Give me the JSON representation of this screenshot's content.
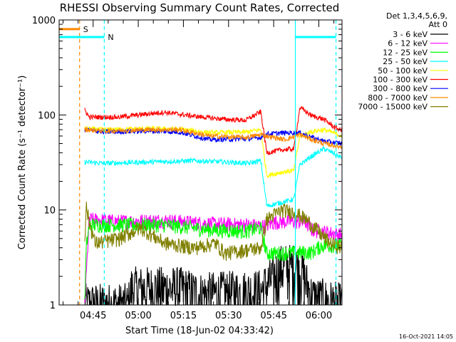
{
  "chart_data": {
    "type": "line",
    "title": "RHESSI Observing Summary Count Rates, Corrected",
    "xlabel": "Start Time (18-Jun-02 04:33:42)",
    "ylabel": "Corrected Count Rate (s⁻¹ detector⁻¹)",
    "yscale": "log",
    "ylim": [
      1,
      1000
    ],
    "xlim_minutes": [
      0,
      94
    ],
    "x_units": "minutes after 04:33:42",
    "x_ticks": [
      {
        "label": "04:45",
        "t": 11.3
      },
      {
        "label": "05:00",
        "t": 26.3
      },
      {
        "label": "05:15",
        "t": 41.3
      },
      {
        "label": "05:30",
        "t": 56.3
      },
      {
        "label": "05:45",
        "t": 71.3
      },
      {
        "label": "06:00",
        "t": 86.3
      }
    ],
    "y_ticks": [
      {
        "label": "1",
        "v": 1
      },
      {
        "label": "10",
        "v": 10
      },
      {
        "label": "100",
        "v": 100
      },
      {
        "label": "1000",
        "v": 1000
      }
    ],
    "legend_header": [
      "Det 1,3,4,5,6,9,",
      "Att 0"
    ],
    "series": [
      {
        "name": "3 - 6 keV",
        "color": "#000000",
        "points": [
          [
            8.5,
            1
          ],
          [
            23,
            1
          ],
          [
            24,
            1.5
          ],
          [
            40,
            1.5
          ],
          [
            47,
            1.3
          ],
          [
            67,
            1.4
          ],
          [
            70,
            1.8
          ],
          [
            74,
            2.6
          ],
          [
            80,
            2.6
          ],
          [
            84,
            1.2
          ],
          [
            94,
            1
          ]
        ]
      },
      {
        "name": "6 - 12 keV",
        "color": "#ff00ff",
        "points": [
          [
            8.5,
            1
          ],
          [
            9,
            2.0
          ],
          [
            10,
            8
          ],
          [
            20,
            7.6
          ],
          [
            35,
            7.8
          ],
          [
            50,
            7.2
          ],
          [
            62,
            7.0
          ],
          [
            68,
            6.8
          ],
          [
            72,
            7.5
          ],
          [
            78,
            7.6
          ],
          [
            82,
            7.4
          ],
          [
            84,
            6.2
          ],
          [
            94,
            5.5
          ]
        ]
      },
      {
        "name": "12 - 25 keV",
        "color": "#00ff00",
        "points": [
          [
            8.5,
            1
          ],
          [
            9,
            4
          ],
          [
            10,
            7
          ],
          [
            20,
            7
          ],
          [
            35,
            7
          ],
          [
            50,
            6.2
          ],
          [
            62,
            6
          ],
          [
            67,
            6.5
          ],
          [
            69,
            3.5
          ],
          [
            84,
            3.6
          ],
          [
            87,
            4.2
          ],
          [
            94,
            4.3
          ]
        ]
      },
      {
        "name": "25 - 50 keV",
        "color": "#00ffff",
        "points": [
          [
            8.5,
            32
          ],
          [
            15,
            31
          ],
          [
            30,
            32
          ],
          [
            45,
            33
          ],
          [
            55,
            32
          ],
          [
            63,
            31
          ],
          [
            67,
            33
          ],
          [
            69,
            11
          ],
          [
            74,
            12
          ],
          [
            78,
            13
          ],
          [
            80,
            30
          ],
          [
            84,
            37
          ],
          [
            88,
            44
          ],
          [
            91,
            40
          ],
          [
            94,
            35
          ]
        ]
      },
      {
        "name": "50 - 100 keV",
        "color": "#ffff00",
        "points": [
          [
            8.5,
            72
          ],
          [
            15,
            70
          ],
          [
            30,
            72
          ],
          [
            40,
            71
          ],
          [
            50,
            65
          ],
          [
            62,
            66
          ],
          [
            67,
            70
          ],
          [
            69,
            23
          ],
          [
            74,
            25
          ],
          [
            78,
            26
          ],
          [
            80,
            60
          ],
          [
            84,
            67
          ],
          [
            88,
            70
          ],
          [
            91,
            65
          ],
          [
            94,
            60
          ]
        ]
      },
      {
        "name": "100 - 300 keV",
        "color": "#ff0000",
        "points": [
          [
            8.5,
            113
          ],
          [
            10,
            95
          ],
          [
            20,
            95
          ],
          [
            30,
            103
          ],
          [
            35,
            107
          ],
          [
            45,
            97
          ],
          [
            55,
            90
          ],
          [
            62,
            88
          ],
          [
            67,
            108
          ],
          [
            69,
            40
          ],
          [
            74,
            43
          ],
          [
            78,
            44
          ],
          [
            80,
            120
          ],
          [
            84,
            98
          ],
          [
            88,
            90
          ],
          [
            91,
            76
          ],
          [
            94,
            68
          ]
        ]
      },
      {
        "name": "300 - 800 keV",
        "color": "#0000ff",
        "points": [
          [
            8.5,
            70
          ],
          [
            15,
            66
          ],
          [
            30,
            68
          ],
          [
            40,
            66
          ],
          [
            50,
            55
          ],
          [
            62,
            56
          ],
          [
            67,
            58
          ],
          [
            69,
            63
          ],
          [
            75,
            65
          ],
          [
            80,
            65
          ],
          [
            84,
            58
          ],
          [
            88,
            53
          ],
          [
            94,
            50
          ]
        ]
      },
      {
        "name": "800 - 7000 keV",
        "color": "#ff8800",
        "points": [
          [
            8.5,
            70
          ],
          [
            15,
            68
          ],
          [
            30,
            70
          ],
          [
            40,
            70
          ],
          [
            50,
            60
          ],
          [
            62,
            58
          ],
          [
            67,
            62
          ],
          [
            69,
            60
          ],
          [
            75,
            55
          ],
          [
            80,
            62
          ],
          [
            84,
            55
          ],
          [
            88,
            50
          ],
          [
            94,
            46
          ]
        ]
      },
      {
        "name": "7000 - 15000 keV",
        "color": "#808000",
        "points": [
          [
            8.5,
            5
          ],
          [
            9,
            11
          ],
          [
            10,
            7.5
          ],
          [
            12,
            4.5
          ],
          [
            20,
            5
          ],
          [
            27,
            6.5
          ],
          [
            35,
            4.5
          ],
          [
            45,
            4
          ],
          [
            52,
            4.5
          ],
          [
            55,
            3.5
          ],
          [
            62,
            3.8
          ],
          [
            67,
            4
          ],
          [
            69,
            8
          ],
          [
            74,
            10
          ],
          [
            78,
            9.5
          ],
          [
            82,
            8
          ],
          [
            86,
            6
          ],
          [
            90,
            4.5
          ],
          [
            94,
            4
          ]
        ]
      }
    ],
    "vertical_markers": [
      {
        "t": 6.8,
        "color": "#ff8800",
        "style": "dashed"
      },
      {
        "t": 15.0,
        "color": "#00ffff",
        "style": "dashed"
      },
      {
        "t": 78.5,
        "color": "#00ffff",
        "style": "solid"
      },
      {
        "t": 92.0,
        "color": "#00ffff",
        "style": "dashed"
      }
    ],
    "flags": [
      {
        "label": "S",
        "color": "#ff8800",
        "t_start": 0,
        "t_end": 6.8,
        "level": 800
      },
      {
        "label": "N",
        "color": "#00ffff",
        "t_start": 0,
        "t_end": 15.0,
        "level": 660
      },
      {
        "label": "",
        "color": "#00ffff",
        "t_start": 78.5,
        "t_end": 92.0,
        "level": 660
      }
    ],
    "footer_timestamp": "16-Oct-2021 14:05"
  }
}
